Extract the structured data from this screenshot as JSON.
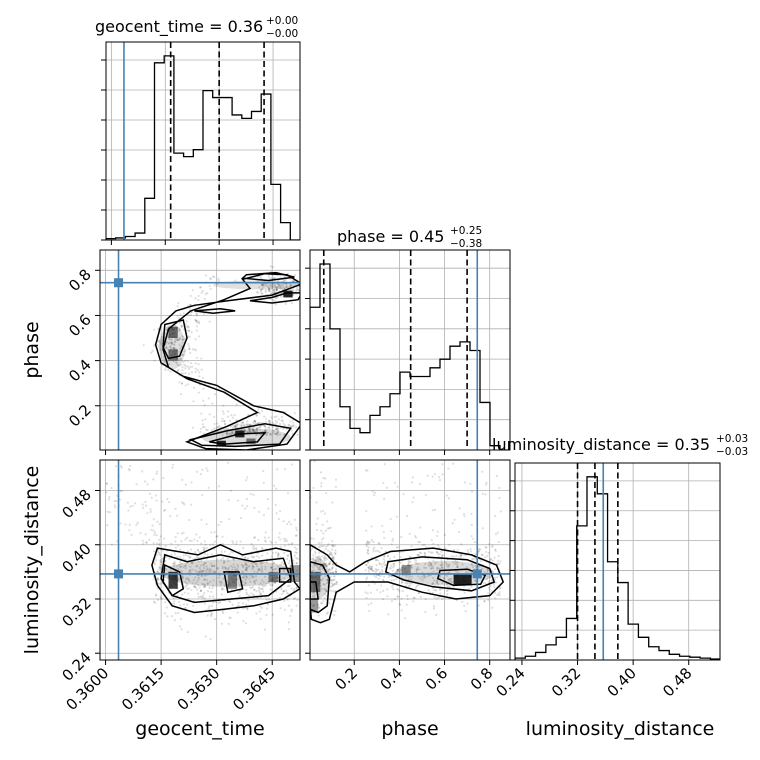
{
  "chart_data": {
    "type": "corner",
    "parameters": [
      "geocent_time",
      "phase",
      "luminosity_distance"
    ],
    "axis_labels": {
      "geocent_time": "geocent_time",
      "phase": "phase",
      "luminosity_distance": "luminosity_distance"
    },
    "titles": [
      {
        "param": "geocent_time",
        "text": "geocent_time = 0.36",
        "plus": "+0.00",
        "minus": "−0.00"
      },
      {
        "param": "phase",
        "text": "phase = 0.45",
        "plus": "+0.25",
        "minus": "−0.38"
      },
      {
        "param": "luminosity_distance",
        "text": "luminosity_distance = 0.35",
        "plus": "+0.03",
        "minus": "−0.03"
      }
    ],
    "ranges": {
      "geocent_time": [
        0.35985,
        0.36525
      ],
      "phase": [
        0.004,
        0.89
      ],
      "luminosity_distance": [
        0.23,
        0.525
      ]
    },
    "ticks": {
      "geocent_time": {
        "values": [
          0.36,
          0.3615,
          0.363,
          0.3645
        ],
        "labels": [
          "0.3600",
          "0.3615",
          "0.3630",
          "0.3645"
        ]
      },
      "phase": {
        "values": [
          0.2,
          0.4,
          0.6,
          0.8
        ],
        "labels": [
          "0.2",
          "0.4",
          "0.6",
          "0.8"
        ]
      },
      "luminosity_distance": {
        "values": [
          0.24,
          0.32,
          0.4,
          0.48
        ],
        "labels": [
          "0.24",
          "0.32",
          "0.40",
          "0.48"
        ]
      }
    },
    "truths": {
      "geocent_time": 0.36035,
      "phase": 0.745,
      "luminosity_distance": 0.357
    },
    "quantiles": {
      "geocent_time": [
        0.36165,
        0.363,
        0.36425
      ],
      "phase": [
        0.065,
        0.45,
        0.7
      ],
      "luminosity_distance": [
        0.32,
        0.345,
        0.378
      ]
    },
    "histograms": {
      "geocent_time": {
        "edges_start": 0.35985,
        "bin_width": 0.00027,
        "counts": [
          0.4,
          0.6,
          1.0,
          2.0,
          12.0,
          51.0,
          53.0,
          25.0,
          24.0,
          26.0,
          43.0,
          41.0,
          41.0,
          36.0,
          35.0,
          37.0,
          42.0,
          16.0,
          5.0,
          0.0
        ]
      },
      "phase": {
        "edges_start": 0.004,
        "bin_width": 0.0443,
        "counts": [
          33.0,
          43.0,
          28.0,
          10.0,
          5.0,
          4.0,
          8.0,
          10.0,
          13.0,
          18.0,
          17.0,
          17.0,
          19.0,
          21.0,
          24.0,
          25.0,
          23.0,
          11.0,
          1.0,
          0.0
        ]
      },
      "luminosity_distance": {
        "edges_start": 0.23,
        "bin_width": 0.0148,
        "counts": [
          1.0,
          2.0,
          4.0,
          8.0,
          12.0,
          22.0,
          71.0,
          97.0,
          88.0,
          52.0,
          41.0,
          19.0,
          12.0,
          7.0,
          5.0,
          3.0,
          2.0,
          1.5,
          1.0,
          0.5
        ]
      }
    },
    "density_2d": {
      "phase_vs_geocent_time": "S-shaped ridge: high phase at late geocent_time, mid phase at early-middle geocent_time, low phase at late geocent_time",
      "luminosity_distance_vs_geocent_time": "broad band near luminosity_distance 0.33-0.37 across geocent_time 0.3614-0.3652",
      "luminosity_distance_vs_phase": "elongated band near luminosity_distance 0.34-0.38, densest near phase 0.7"
    }
  }
}
